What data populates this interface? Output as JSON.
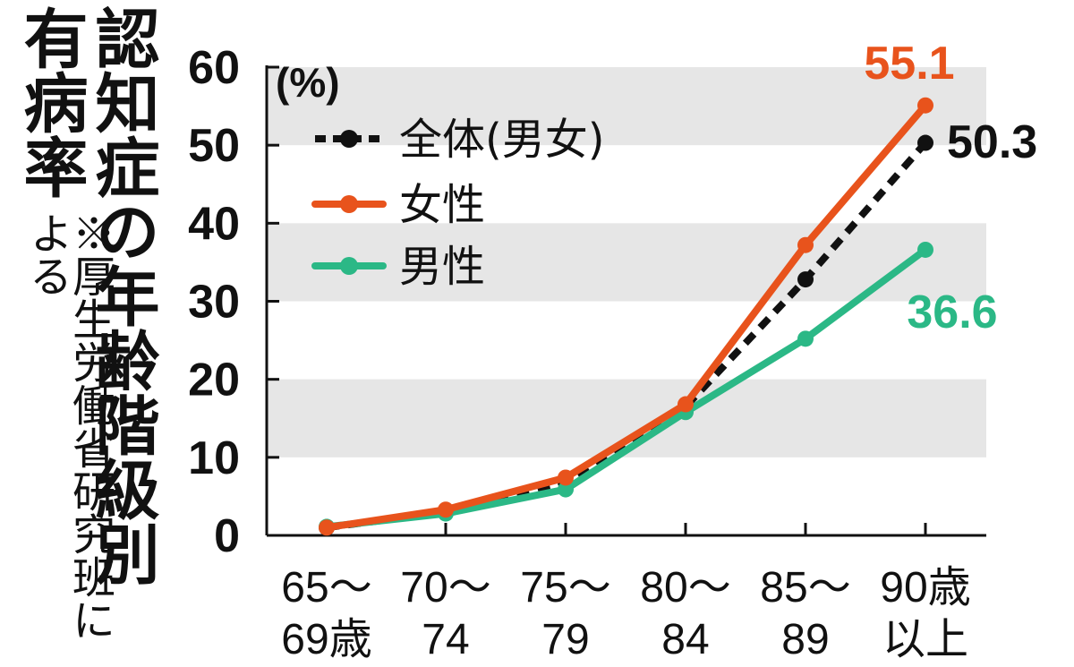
{
  "title": "認知症の年齢階級別",
  "subtitle": "有病率",
  "source_note": "※厚生労働省研究班による",
  "colors": {
    "overall": "#111111",
    "female": "#e8531c",
    "male": "#2bb886",
    "band": "#e6e6e6"
  },
  "chart_data": {
    "type": "line",
    "title": "認知症の年齢階級別",
    "subtitle": "有病率",
    "ylabel": "(%)",
    "xlabel": "",
    "ylim": [
      0,
      60
    ],
    "yticks": [
      "0",
      "10",
      "20",
      "30",
      "40",
      "50",
      "60"
    ],
    "categories": [
      [
        "65〜",
        "69歳"
      ],
      [
        "70〜",
        "74"
      ],
      [
        "75〜",
        "79"
      ],
      [
        "80〜",
        "84"
      ],
      [
        "85〜",
        "89"
      ],
      [
        "90歳",
        "以上"
      ]
    ],
    "grid": "alternating horizontal bands",
    "legend_position": "top-left",
    "series": [
      {
        "name": "全体(男女)",
        "key": "overall",
        "style": "dashed",
        "values": [
          1.0,
          3.0,
          6.8,
          16.5,
          32.8,
          50.3
        ],
        "end_label": "50.3"
      },
      {
        "name": "女性",
        "key": "female",
        "style": "solid",
        "values": [
          1.0,
          3.3,
          7.4,
          16.8,
          37.2,
          55.1
        ],
        "end_label": "55.1"
      },
      {
        "name": "男性",
        "key": "male",
        "style": "solid",
        "values": [
          1.1,
          2.8,
          5.9,
          15.8,
          25.2,
          36.6
        ],
        "end_label": "36.6"
      }
    ]
  }
}
